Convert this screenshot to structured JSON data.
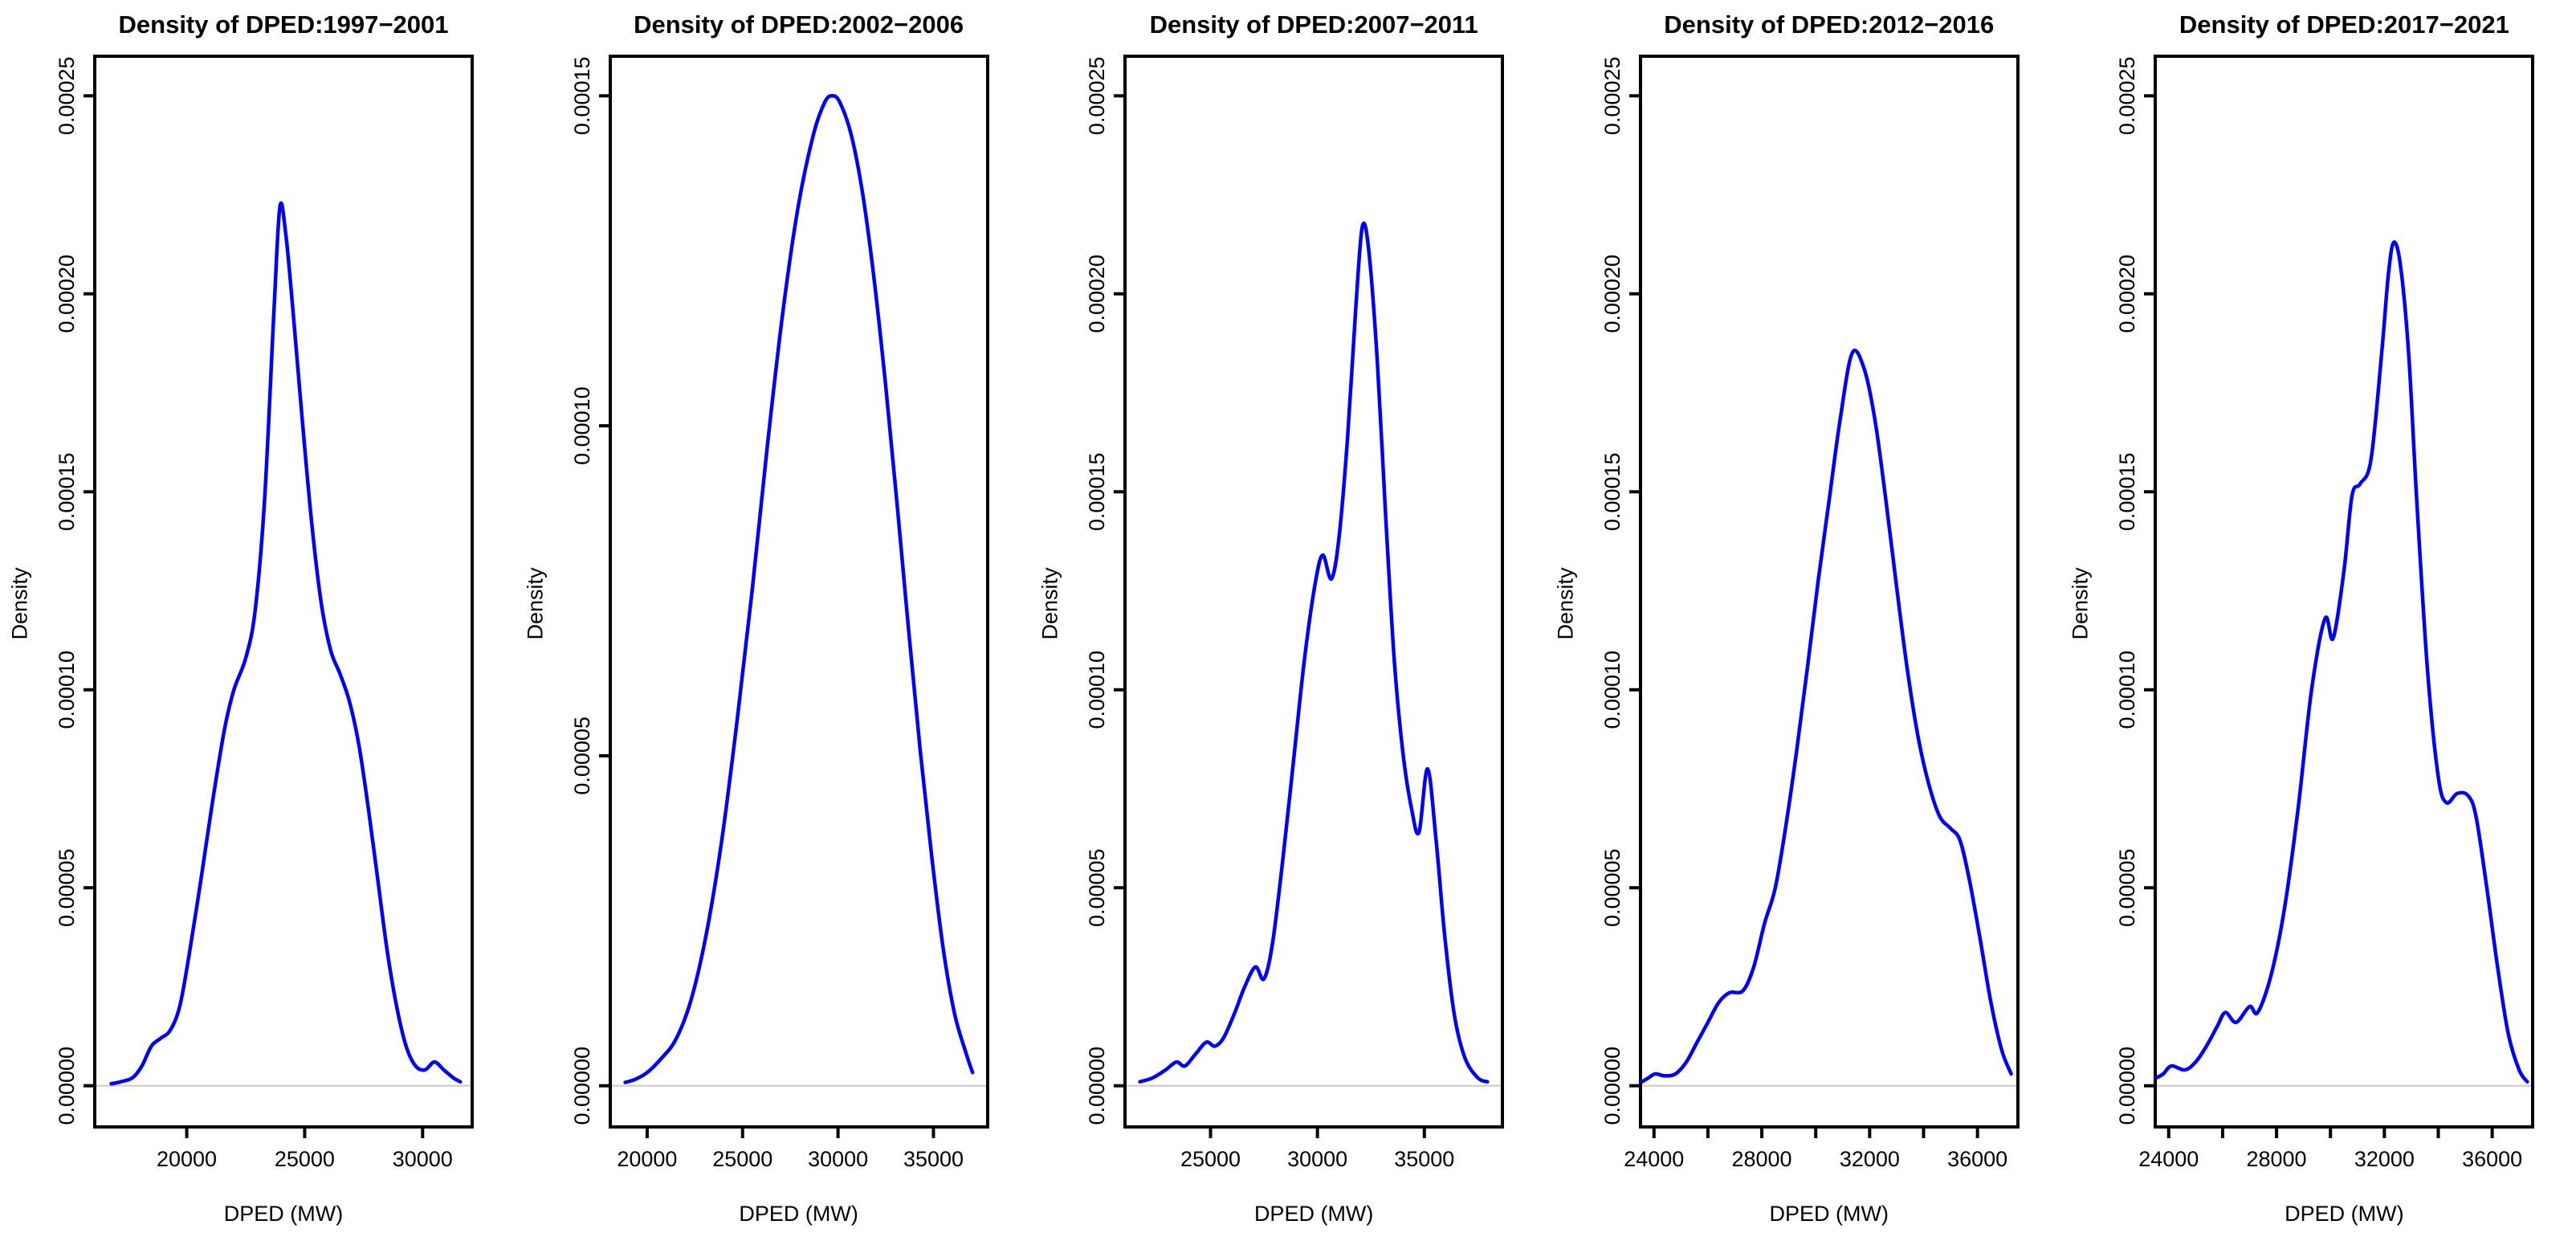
{
  "figure": {
    "background": "#ffffff",
    "curve_color": "#0000ff",
    "axis_color": "#000000",
    "zero_line_color": "#c9c9c9",
    "ylabel": "Density",
    "xlabel": "DPED (MW)"
  },
  "chart_data": [
    {
      "type": "line",
      "title": "Density of DPED:1997−2001",
      "xlabel": "DPED (MW)",
      "ylabel": "Density",
      "legend": "none",
      "grid": false,
      "xlim": [
        16100,
        32100
      ],
      "ylim": [
        -1.04e-05,
        0.00026
      ],
      "x_ticks": [
        {
          "value": 20000,
          "label": "20000"
        },
        {
          "value": 25000,
          "label": "25000"
        },
        {
          "value": 30000,
          "label": "30000"
        }
      ],
      "x_minor_ticks": [],
      "y_ticks": [
        {
          "value": 0,
          "label": "0.00000"
        },
        {
          "value": 5e-05,
          "label": "0.00005"
        },
        {
          "value": 0.0001,
          "label": "0.00010"
        },
        {
          "value": 0.00015,
          "label": "0.00015"
        },
        {
          "value": 0.0002,
          "label": "0.00020"
        },
        {
          "value": 0.00025,
          "label": "0.00025"
        }
      ],
      "peak": {
        "x": 23950,
        "y": 0.000222
      },
      "points": [
        [
          16800,
          5e-07
        ],
        [
          17200,
          1e-06
        ],
        [
          17700,
          2e-06
        ],
        [
          18100,
          5e-06
        ],
        [
          18500,
          1e-05
        ],
        [
          18900,
          1.2e-05
        ],
        [
          19300,
          1.4e-05
        ],
        [
          19700,
          2e-05
        ],
        [
          20100,
          3.3e-05
        ],
        [
          20600,
          5.2e-05
        ],
        [
          21100,
          7.2e-05
        ],
        [
          21600,
          9e-05
        ],
        [
          22000,
          0.0001
        ],
        [
          22500,
          0.000108
        ],
        [
          22900,
          0.00012
        ],
        [
          23300,
          0.000148
        ],
        [
          23700,
          0.000196
        ],
        [
          23950,
          0.000222
        ],
        [
          24200,
          0.000215
        ],
        [
          24500,
          0.000196
        ],
        [
          24900,
          0.000168
        ],
        [
          25300,
          0.000142
        ],
        [
          25700,
          0.000122
        ],
        [
          26100,
          0.00011
        ],
        [
          26500,
          0.000104
        ],
        [
          26900,
          9.7e-05
        ],
        [
          27300,
          8.6e-05
        ],
        [
          27700,
          7e-05
        ],
        [
          28100,
          5.2e-05
        ],
        [
          28500,
          3.4e-05
        ],
        [
          28900,
          2e-05
        ],
        [
          29300,
          1e-05
        ],
        [
          29700,
          5e-06
        ],
        [
          30100,
          4e-06
        ],
        [
          30500,
          6e-06
        ],
        [
          30900,
          4e-06
        ],
        [
          31300,
          2e-06
        ],
        [
          31600,
          1e-06
        ]
      ]
    },
    {
      "type": "line",
      "title": "Density of DPED:2002−2006",
      "xlabel": "DPED (MW)",
      "ylabel": "Density",
      "legend": "none",
      "grid": false,
      "xlim": [
        18068,
        37841
      ],
      "ylim": [
        -6.24e-06,
        0.000156
      ],
      "x_ticks": [
        {
          "value": 20000,
          "label": "20000"
        },
        {
          "value": 25000,
          "label": "25000"
        },
        {
          "value": 30000,
          "label": "30000"
        },
        {
          "value": 35000,
          "label": "35000"
        }
      ],
      "x_minor_ticks": [],
      "y_ticks": [
        {
          "value": 0,
          "label": "0.00000"
        },
        {
          "value": 5e-05,
          "label": "0.00005"
        },
        {
          "value": 0.0001,
          "label": "0.00010"
        },
        {
          "value": 0.00015,
          "label": "0.00015"
        }
      ],
      "peak": {
        "x": 29700,
        "y": 0.00015
      },
      "points": [
        [
          18850,
          5e-07
        ],
        [
          19400,
          1e-06
        ],
        [
          20000,
          2e-06
        ],
        [
          20700,
          4e-06
        ],
        [
          21500,
          7e-06
        ],
        [
          22300,
          1.3e-05
        ],
        [
          23100,
          2.3e-05
        ],
        [
          23900,
          3.7e-05
        ],
        [
          24700,
          5.5e-05
        ],
        [
          25500,
          7.5e-05
        ],
        [
          26300,
          9.7e-05
        ],
        [
          27100,
          0.000117
        ],
        [
          27900,
          0.000133
        ],
        [
          28700,
          0.000144
        ],
        [
          29300,
          0.000149
        ],
        [
          29700,
          0.00015
        ],
        [
          30100,
          0.000149
        ],
        [
          30700,
          0.000144
        ],
        [
          31300,
          0.000135
        ],
        [
          31900,
          0.000122
        ],
        [
          32500,
          0.000106
        ],
        [
          33100,
          8.8e-05
        ],
        [
          33700,
          6.9e-05
        ],
        [
          34300,
          5.1e-05
        ],
        [
          34900,
          3.5e-05
        ],
        [
          35500,
          2.1e-05
        ],
        [
          36100,
          1.1e-05
        ],
        [
          36700,
          5e-06
        ],
        [
          37050,
          2e-06
        ]
      ]
    },
    {
      "type": "line",
      "title": "Density of DPED:2007−2011",
      "xlabel": "DPED (MW)",
      "ylabel": "Density",
      "legend": "none",
      "grid": false,
      "xlim": [
        21000,
        38650
      ],
      "ylim": [
        -1.04e-05,
        0.00026
      ],
      "x_ticks": [
        {
          "value": 25000,
          "label": "25000"
        },
        {
          "value": 30000,
          "label": "30000"
        },
        {
          "value": 35000,
          "label": "35000"
        }
      ],
      "x_minor_ticks": [],
      "y_ticks": [
        {
          "value": 0,
          "label": "0.00000"
        },
        {
          "value": 5e-05,
          "label": "0.00005"
        },
        {
          "value": 0.0001,
          "label": "0.00010"
        },
        {
          "value": 0.00015,
          "label": "0.00015"
        },
        {
          "value": 0.0002,
          "label": "0.00020"
        },
        {
          "value": 0.00025,
          "label": "0.00025"
        }
      ],
      "peak": {
        "x": 32100,
        "y": 0.000217
      },
      "points": [
        [
          21700,
          1e-06
        ],
        [
          22300,
          2e-06
        ],
        [
          22900,
          4e-06
        ],
        [
          23400,
          6e-06
        ],
        [
          23800,
          5e-06
        ],
        [
          24300,
          8e-06
        ],
        [
          24800,
          1.1e-05
        ],
        [
          25200,
          1e-05
        ],
        [
          25600,
          1.2e-05
        ],
        [
          26100,
          1.8e-05
        ],
        [
          26600,
          2.5e-05
        ],
        [
          27100,
          3e-05
        ],
        [
          27500,
          2.7e-05
        ],
        [
          27900,
          3.6e-05
        ],
        [
          28400,
          5.8e-05
        ],
        [
          28900,
          8.3e-05
        ],
        [
          29400,
          0.000108
        ],
        [
          29900,
          0.000127
        ],
        [
          30250,
          0.000134
        ],
        [
          30650,
          0.000128
        ],
        [
          31000,
          0.000138
        ],
        [
          31400,
          0.000163
        ],
        [
          31800,
          0.000197
        ],
        [
          32100,
          0.000217
        ],
        [
          32400,
          0.000211
        ],
        [
          32800,
          0.000183
        ],
        [
          33200,
          0.000143
        ],
        [
          33600,
          0.000107
        ],
        [
          34000,
          8.4e-05
        ],
        [
          34400,
          7e-05
        ],
        [
          34750,
          6.4e-05
        ],
        [
          35150,
          8e-05
        ],
        [
          35550,
          6.2e-05
        ],
        [
          35950,
          3.8e-05
        ],
        [
          36400,
          1.8e-05
        ],
        [
          36900,
          7e-06
        ],
        [
          37500,
          2e-06
        ],
        [
          37950,
          1e-06
        ]
      ]
    },
    {
      "type": "line",
      "title": "Density of DPED:2012−2016",
      "xlabel": "DPED (MW)",
      "ylabel": "Density",
      "legend": "none",
      "grid": false,
      "xlim": [
        23500,
        37500
      ],
      "ylim": [
        -1.04e-05,
        0.00026
      ],
      "x_ticks": [
        {
          "value": 24000,
          "label": "24000"
        },
        {
          "value": 28000,
          "label": "28000"
        },
        {
          "value": 32000,
          "label": "32000"
        },
        {
          "value": 36000,
          "label": "36000"
        }
      ],
      "x_minor_ticks": [
        26000,
        30000,
        34000
      ],
      "y_ticks": [
        {
          "value": 0,
          "label": "0.00000"
        },
        {
          "value": 5e-05,
          "label": "0.00005"
        },
        {
          "value": 0.0001,
          "label": "0.00010"
        },
        {
          "value": 0.00015,
          "label": "0.00015"
        },
        {
          "value": 0.0002,
          "label": "0.00020"
        },
        {
          "value": 0.00025,
          "label": "0.00025"
        }
      ],
      "peak": {
        "x": 31350,
        "y": 0.000185
      },
      "points": [
        [
          23550,
          1e-06
        ],
        [
          23800,
          2e-06
        ],
        [
          24050,
          3e-06
        ],
        [
          24400,
          2.5e-06
        ],
        [
          24800,
          3e-06
        ],
        [
          25200,
          6e-06
        ],
        [
          25600,
          1.1e-05
        ],
        [
          26000,
          1.6e-05
        ],
        [
          26400,
          2.1e-05
        ],
        [
          26800,
          2.35e-05
        ],
        [
          27300,
          2.4e-05
        ],
        [
          27700,
          3e-05
        ],
        [
          28100,
          4.1e-05
        ],
        [
          28500,
          5e-05
        ],
        [
          28900,
          6.6e-05
        ],
        [
          29300,
          8.5e-05
        ],
        [
          29700,
          0.000106
        ],
        [
          30100,
          0.000128
        ],
        [
          30500,
          0.000148
        ],
        [
          30900,
          0.000168
        ],
        [
          31350,
          0.000185
        ],
        [
          31800,
          0.000181
        ],
        [
          32200,
          0.000168
        ],
        [
          32600,
          0.000148
        ],
        [
          33000,
          0.000126
        ],
        [
          33400,
          0.000105
        ],
        [
          33800,
          8.8e-05
        ],
        [
          34200,
          7.6e-05
        ],
        [
          34600,
          6.8e-05
        ],
        [
          35000,
          6.5e-05
        ],
        [
          35350,
          6.2e-05
        ],
        [
          35700,
          5.2e-05
        ],
        [
          36100,
          3.7e-05
        ],
        [
          36500,
          2.1e-05
        ],
        [
          36900,
          9e-06
        ],
        [
          37250,
          3e-06
        ]
      ]
    },
    {
      "type": "line",
      "title": "Density of DPED:2017−2021",
      "xlabel": "DPED (MW)",
      "ylabel": "Density",
      "legend": "none",
      "grid": false,
      "xlim": [
        23500,
        37500
      ],
      "ylim": [
        -1.04e-05,
        0.00026
      ],
      "x_ticks": [
        {
          "value": 24000,
          "label": "24000"
        },
        {
          "value": 28000,
          "label": "28000"
        },
        {
          "value": 32000,
          "label": "32000"
        },
        {
          "value": 36000,
          "label": "36000"
        }
      ],
      "x_minor_ticks": [
        26000,
        30000,
        34000
      ],
      "y_ticks": [
        {
          "value": 0,
          "label": "0.00000"
        },
        {
          "value": 5e-05,
          "label": "0.00005"
        },
        {
          "value": 0.0001,
          "label": "0.00010"
        },
        {
          "value": 0.00015,
          "label": "0.00015"
        },
        {
          "value": 0.0002,
          "label": "0.00020"
        },
        {
          "value": 0.00025,
          "label": "0.00025"
        }
      ],
      "peak": {
        "x": 32350,
        "y": 0.000213
      },
      "points": [
        [
          23550,
          2e-06
        ],
        [
          23800,
          3e-06
        ],
        [
          24100,
          5e-06
        ],
        [
          24600,
          4e-06
        ],
        [
          25000,
          6e-06
        ],
        [
          25400,
          1e-05
        ],
        [
          25800,
          1.5e-05
        ],
        [
          26100,
          1.85e-05
        ],
        [
          26500,
          1.6e-05
        ],
        [
          27000,
          2e-05
        ],
        [
          27300,
          1.85e-05
        ],
        [
          27800,
          2.8e-05
        ],
        [
          28300,
          4.5e-05
        ],
        [
          28800,
          7e-05
        ],
        [
          29300,
          0.0001
        ],
        [
          29800,
          0.000118
        ],
        [
          30100,
          0.000113
        ],
        [
          30500,
          0.00013
        ],
        [
          30800,
          0.000149
        ],
        [
          31100,
          0.000152
        ],
        [
          31500,
          0.000158
        ],
        [
          31900,
          0.000185
        ],
        [
          32150,
          0.000205
        ],
        [
          32350,
          0.000213
        ],
        [
          32600,
          0.000207
        ],
        [
          32900,
          0.000185
        ],
        [
          33200,
          0.000148
        ],
        [
          33600,
          0.000105
        ],
        [
          34000,
          7.8e-05
        ],
        [
          34300,
          7.15e-05
        ],
        [
          34700,
          7.38e-05
        ],
        [
          35100,
          7.33e-05
        ],
        [
          35400,
          6.8e-05
        ],
        [
          35800,
          5e-05
        ],
        [
          36200,
          3e-05
        ],
        [
          36600,
          1.3e-05
        ],
        [
          37000,
          4e-06
        ],
        [
          37300,
          1e-06
        ]
      ]
    }
  ]
}
